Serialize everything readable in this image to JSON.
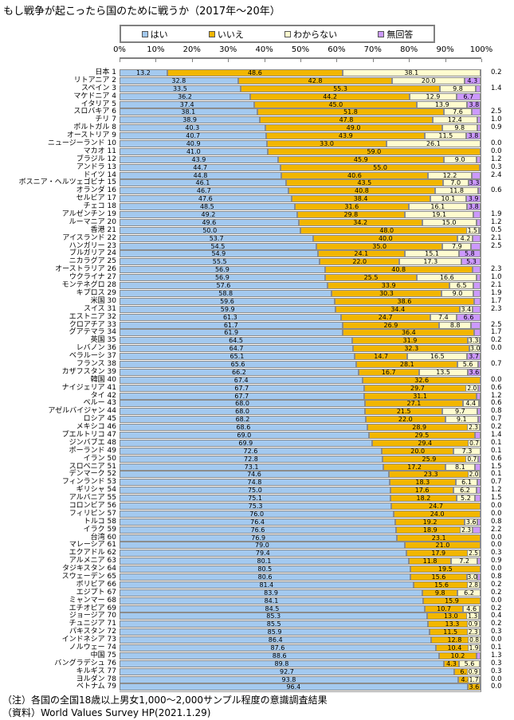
{
  "title": "もし戦争が起こったら国のために戦うか（2017年～20年）",
  "legend": {
    "items": [
      {
        "label": "はい",
        "color": "#a3c9ef"
      },
      {
        "label": "いいえ",
        "color": "#f2b600"
      },
      {
        "label": "わからない",
        "color": "#fffccf"
      },
      {
        "label": "無回答",
        "color": "#cc99ff"
      }
    ]
  },
  "notes": {
    "line1": "（注）各国の全国18歳以上男女1,000～2,000サンプル程度の意識調査結果",
    "line2": "（資料）World Values Survey HP(2021.1.29)"
  },
  "chart_data": {
    "type": "bar",
    "stacked": true,
    "orientation": "horizontal",
    "unit": "%",
    "xlim": [
      0,
      100
    ],
    "x_ticks": [
      "0%",
      "10%",
      "20%",
      "30%",
      "40%",
      "50%",
      "60%",
      "70%",
      "80%",
      "90%",
      "100%"
    ],
    "legend_position": "top",
    "grid": false,
    "series_names": [
      "はい",
      "いいえ",
      "わからない",
      "無回答"
    ],
    "rows": [
      {
        "rank": 1,
        "name": "日本",
        "yes": 13.2,
        "no": 48.6,
        "dk": 38.1,
        "na": 0.2,
        "na_in": false
      },
      {
        "rank": 2,
        "name": "リトアニア",
        "yes": 32.8,
        "no": 42.8,
        "dk": 20.0,
        "na": 4.3,
        "na_in": true
      },
      {
        "rank": 3,
        "name": "スペイン",
        "yes": 33.5,
        "no": 55.3,
        "dk": 9.8,
        "na": 1.4,
        "na_in": false
      },
      {
        "rank": 4,
        "name": "マケドニア",
        "yes": 36.2,
        "no": 44.2,
        "dk": 12.9,
        "na": 6.7,
        "na_in": true
      },
      {
        "rank": 5,
        "name": "イタリア",
        "yes": 37.4,
        "no": 45.0,
        "dk": 13.9,
        "na": 3.8,
        "na_in": true
      },
      {
        "rank": 6,
        "name": "スロバキア",
        "yes": 38.1,
        "no": 51.8,
        "dk": 7.6,
        "na": 2.5,
        "na_in": false
      },
      {
        "rank": 7,
        "name": "チリ",
        "yes": 38.9,
        "no": 47.8,
        "dk": 12.4,
        "na": 1.0,
        "na_in": false
      },
      {
        "rank": 8,
        "name": "ポルトガル",
        "yes": 40.3,
        "no": 49.0,
        "dk": 9.8,
        "na": 0.9,
        "na_in": false
      },
      {
        "rank": 9,
        "name": "オーストリア",
        "yes": 40.7,
        "no": 43.9,
        "dk": 11.5,
        "na": 3.8,
        "na_in": true
      },
      {
        "rank": 10,
        "name": "ニュージーランド",
        "yes": 40.9,
        "no": 33.0,
        "dk": 26.1,
        "na": 0.0,
        "na_in": false
      },
      {
        "rank": 11,
        "name": "マカオ",
        "yes": 41.0,
        "no": 59.0,
        "dk": 0,
        "na": 0.0,
        "na_in": false
      },
      {
        "rank": 12,
        "name": "ブラジル",
        "yes": 43.9,
        "no": 45.9,
        "dk": 9.0,
        "na": 1.2,
        "na_in": false
      },
      {
        "rank": 13,
        "name": "アンドラ",
        "yes": 44.7,
        "no": 55.0,
        "dk": 0,
        "na": 0.3,
        "na_in": false
      },
      {
        "rank": 14,
        "name": "ドイツ",
        "yes": 44.8,
        "no": 40.6,
        "dk": 12.2,
        "na": 2.4,
        "na_in": false
      },
      {
        "rank": 15,
        "name": "ボスニア・ヘルツェゴビナ",
        "yes": 46.1,
        "no": 43.5,
        "dk": 7.0,
        "na": 3.3,
        "na_in": true
      },
      {
        "rank": 16,
        "name": "オランダ",
        "yes": 46.7,
        "no": 40.8,
        "dk": 11.8,
        "na": 0.6,
        "na_in": false
      },
      {
        "rank": 17,
        "name": "セルビア",
        "yes": 47.6,
        "no": 38.4,
        "dk": 10.1,
        "na": 3.9,
        "na_in": true
      },
      {
        "rank": 18,
        "name": "チェコ",
        "yes": 48.5,
        "no": 31.6,
        "dk": 16.1,
        "na": 3.8,
        "na_in": true
      },
      {
        "rank": 19,
        "name": "アルゼンチン",
        "yes": 49.2,
        "no": 29.8,
        "dk": 19.1,
        "na": 1.9,
        "na_in": false
      },
      {
        "rank": 20,
        "name": "ルーマニア",
        "yes": 49.6,
        "no": 34.2,
        "dk": 15.0,
        "na": 1.2,
        "na_in": false
      },
      {
        "rank": 21,
        "name": "香港",
        "yes": 50.0,
        "no": 48.0,
        "dk": 1.5,
        "na": 0.5,
        "na_in": false
      },
      {
        "rank": 22,
        "name": "アイスランド",
        "yes": 53.7,
        "no": 40.0,
        "dk": 4.2,
        "na": 2.1,
        "na_in": false
      },
      {
        "rank": 23,
        "name": "ハンガリー",
        "yes": 54.5,
        "no": 35.0,
        "dk": 7.9,
        "na": 2.5,
        "na_in": false
      },
      {
        "rank": 24,
        "name": "ブルガリア",
        "yes": 54.9,
        "no": 24.1,
        "dk": 15.1,
        "na": 5.8,
        "na_in": true
      },
      {
        "rank": 25,
        "name": "ニカラグア",
        "yes": 55.5,
        "no": 22.0,
        "dk": 17.3,
        "na": 5.3,
        "na_in": true
      },
      {
        "rank": 26,
        "name": "オーストラリア",
        "yes": 56.9,
        "no": 40.8,
        "dk": 0,
        "na": 2.3,
        "na_in": false
      },
      {
        "rank": 27,
        "name": "ウクライナ",
        "yes": 56.9,
        "no": 25.5,
        "dk": 16.6,
        "na": 1.0,
        "na_in": false
      },
      {
        "rank": 28,
        "name": "モンテネグロ",
        "yes": 57.6,
        "no": 33.9,
        "dk": 6.5,
        "na": 2.1,
        "na_in": false
      },
      {
        "rank": 29,
        "name": "キプロス",
        "yes": 58.8,
        "no": 30.3,
        "dk": 9.0,
        "na": 1.9,
        "na_in": false
      },
      {
        "rank": 30,
        "name": "米国",
        "yes": 59.6,
        "no": 38.6,
        "dk": 0,
        "na": 1.7,
        "na_in": false
      },
      {
        "rank": 31,
        "name": "スイス",
        "yes": 59.9,
        "no": 34.4,
        "dk": 3.4,
        "na": 2.3,
        "na_in": false
      },
      {
        "rank": 32,
        "name": "エストニア",
        "yes": 61.3,
        "no": 24.7,
        "dk": 7.4,
        "na": 6.6,
        "na_in": true
      },
      {
        "rank": 33,
        "name": "クロアチア",
        "yes": 61.7,
        "no": 26.9,
        "dk": 8.8,
        "na": 2.5,
        "na_in": false
      },
      {
        "rank": 34,
        "name": "グアテマラ",
        "yes": 61.9,
        "no": 36.4,
        "dk": 0,
        "na": 1.7,
        "na_in": false
      },
      {
        "rank": 35,
        "name": "英国",
        "yes": 64.5,
        "no": 31.9,
        "dk": 3.3,
        "na": 0.2,
        "na_in": false
      },
      {
        "rank": 36,
        "name": "レバノン",
        "yes": 64.7,
        "no": 32.3,
        "dk": 3.0,
        "na": 0.0,
        "na_in": false
      },
      {
        "rank": 37,
        "name": "ベラルーシ",
        "yes": 65.1,
        "no": 14.7,
        "dk": 16.5,
        "na": 3.7,
        "na_in": true
      },
      {
        "rank": 38,
        "name": "フランス",
        "yes": 65.6,
        "no": 28.1,
        "dk": 5.6,
        "na": 0.7,
        "na_in": false
      },
      {
        "rank": 39,
        "name": "カザフスタン",
        "yes": 66.2,
        "no": 16.7,
        "dk": 13.5,
        "na": 3.6,
        "na_in": true
      },
      {
        "rank": 40,
        "name": "韓国",
        "yes": 67.4,
        "no": 32.6,
        "dk": 0,
        "na": 0.0,
        "na_in": false
      },
      {
        "rank": 41,
        "name": "ナイジェリア",
        "yes": 67.7,
        "no": 29.7,
        "dk": 2.0,
        "na": 0.6,
        "na_in": false
      },
      {
        "rank": 42,
        "name": "タイ",
        "yes": 67.7,
        "no": 31.1,
        "dk": 0,
        "na": 1.2,
        "na_in": false
      },
      {
        "rank": 43,
        "name": "ペルー",
        "yes": 68.0,
        "no": 27.1,
        "dk": 4.4,
        "na": 0.6,
        "na_in": false
      },
      {
        "rank": 44,
        "name": "アゼルバイジャン",
        "yes": 68.0,
        "no": 21.5,
        "dk": 9.7,
        "na": 0.8,
        "na_in": false
      },
      {
        "rank": 45,
        "name": "ロシア",
        "yes": 68.2,
        "no": 22.0,
        "dk": 9.1,
        "na": 0.7,
        "na_in": false
      },
      {
        "rank": 46,
        "name": "メキシコ",
        "yes": 68.6,
        "no": 28.9,
        "dk": 2.3,
        "na": 0.2,
        "na_in": false
      },
      {
        "rank": 47,
        "name": "プエルトリコ",
        "yes": 69.0,
        "no": 29.5,
        "dk": 0,
        "na": 1.4,
        "na_in": false
      },
      {
        "rank": 48,
        "name": "ジンバブエ",
        "yes": 69.9,
        "no": 29.4,
        "dk": 0.7,
        "na": 0.1,
        "na_in": false
      },
      {
        "rank": 49,
        "name": "ポーランド",
        "yes": 72.6,
        "no": 20.0,
        "dk": 7.3,
        "na": 0.1,
        "na_in": false
      },
      {
        "rank": 50,
        "name": "イラン",
        "yes": 72.8,
        "no": 25.9,
        "dk": 0.7,
        "na": 0.6,
        "na_in": false
      },
      {
        "rank": 51,
        "name": "スロベニア",
        "yes": 73.1,
        "no": 17.2,
        "dk": 8.1,
        "na": 1.5,
        "na_in": false
      },
      {
        "rank": 52,
        "name": "デンマーク",
        "yes": 74.6,
        "no": 23.3,
        "dk": 2.0,
        "na": 0.1,
        "na_in": false
      },
      {
        "rank": 53,
        "name": "フィンランド",
        "yes": 74.8,
        "no": 18.3,
        "dk": 6.1,
        "na": 0.7,
        "na_in": false
      },
      {
        "rank": 54,
        "name": "ギリシャ",
        "yes": 75.0,
        "no": 17.6,
        "dk": 6.2,
        "na": 1.2,
        "na_in": false
      },
      {
        "rank": 55,
        "name": "アルバニア",
        "yes": 75.1,
        "no": 18.2,
        "dk": 5.2,
        "na": 1.5,
        "na_in": false
      },
      {
        "rank": 56,
        "name": "コロンビア",
        "yes": 75.3,
        "no": 24.7,
        "dk": 0,
        "na": 0.0,
        "na_in": false
      },
      {
        "rank": 57,
        "name": "フィリピン",
        "yes": 76.0,
        "no": 24.0,
        "dk": 0,
        "na": 0.0,
        "na_in": false
      },
      {
        "rank": 58,
        "name": "トルコ",
        "yes": 76.4,
        "no": 19.2,
        "dk": 3.6,
        "na": 0.8,
        "na_in": false
      },
      {
        "rank": 59,
        "name": "イラク",
        "yes": 76.6,
        "no": 18.9,
        "dk": 2.3,
        "na": 2.2,
        "na_in": false
      },
      {
        "rank": 60,
        "name": "台湾",
        "yes": 76.9,
        "no": 23.1,
        "dk": 0,
        "na": 0.0,
        "na_in": false
      },
      {
        "rank": 61,
        "name": "マレーシア",
        "yes": 79.0,
        "no": 21.0,
        "dk": 0,
        "na": 0.0,
        "na_in": false
      },
      {
        "rank": 62,
        "name": "エクアドル",
        "yes": 79.4,
        "no": 17.9,
        "dk": 2.5,
        "na": 0.3,
        "na_in": false
      },
      {
        "rank": 63,
        "name": "アルメニア",
        "yes": 80.1,
        "no": 11.8,
        "dk": 7.2,
        "na": 0.9,
        "na_in": false
      },
      {
        "rank": 64,
        "name": "タジキスタン",
        "yes": 80.5,
        "no": 19.5,
        "dk": 0,
        "na": 0.0,
        "na_in": false
      },
      {
        "rank": 65,
        "name": "スウェーデン",
        "yes": 80.6,
        "no": 15.6,
        "dk": 3.0,
        "na": 0.8,
        "na_in": false
      },
      {
        "rank": 66,
        "name": "ボリビア",
        "yes": 81.4,
        "no": 15.6,
        "dk": 2.8,
        "na": 0.2,
        "na_in": false
      },
      {
        "rank": 67,
        "name": "エジプト",
        "yes": 83.9,
        "no": 9.8,
        "dk": 6.2,
        "na": 0.2,
        "na_in": false
      },
      {
        "rank": 68,
        "name": "ミャンマー",
        "yes": 84.1,
        "no": 15.9,
        "dk": 0,
        "na": 0.0,
        "na_in": false
      },
      {
        "rank": 69,
        "name": "エチオピア",
        "yes": 84.5,
        "no": 10.7,
        "dk": 4.6,
        "na": 0.2,
        "na_in": false
      },
      {
        "rank": 70,
        "name": "ジョージア",
        "yes": 85.3,
        "no": 13.0,
        "dk": 1.3,
        "na": 0.4,
        "na_in": false
      },
      {
        "rank": 71,
        "name": "チュニジア",
        "yes": 85.5,
        "no": 13.3,
        "dk": 0.9,
        "na": 0.2,
        "na_in": false
      },
      {
        "rank": 72,
        "name": "パキスタン",
        "yes": 85.9,
        "no": 11.5,
        "dk": 2.3,
        "na": 0.3,
        "na_in": false
      },
      {
        "rank": 73,
        "name": "インドネシア",
        "yes": 86.4,
        "no": 12.8,
        "dk": 0.8,
        "na": 0.0,
        "na_in": false
      },
      {
        "rank": 74,
        "name": "ノルウェー",
        "yes": 87.6,
        "no": 10.4,
        "dk": 1.9,
        "na": 0.1,
        "na_in": false
      },
      {
        "rank": 75,
        "name": "中国",
        "yes": 88.6,
        "no": 10.2,
        "dk": 0,
        "na": 1.3,
        "na_in": false
      },
      {
        "rank": 76,
        "name": "バングラデシュ",
        "yes": 89.8,
        "no": 4.3,
        "dk": 5.6,
        "na": 0.3,
        "na_in": false
      },
      {
        "rank": 77,
        "name": "キルギス",
        "yes": 92.7,
        "no": 6.1,
        "dk": 0.9,
        "na": 0.3,
        "na_in": false
      },
      {
        "rank": 78,
        "name": "ヨルダン",
        "yes": 93.8,
        "no": 4.4,
        "dk": 1.7,
        "na": 0.0,
        "na_in": false
      },
      {
        "rank": 79,
        "name": "ベトナム",
        "yes": 96.4,
        "no": 3.6,
        "dk": 0,
        "na": 0.0,
        "na_in": false
      }
    ]
  }
}
